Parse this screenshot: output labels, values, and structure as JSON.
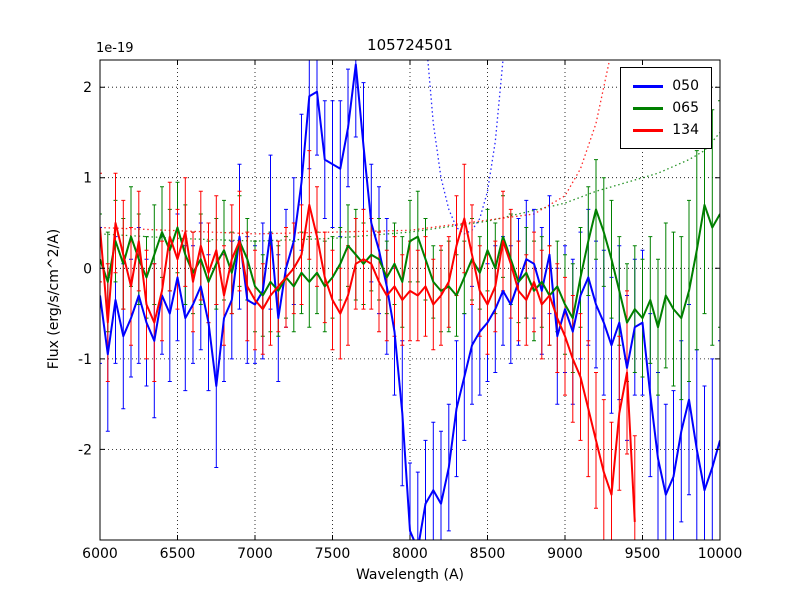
{
  "chart_data": {
    "type": "line",
    "title": "105724501",
    "xlabel": "Wavelength (A)",
    "ylabel": "Flux (erg/s/cm^2/A)",
    "offset_text": "1e-19",
    "grid": true,
    "legend_position": "upper right",
    "xlim": [
      6000,
      10000
    ],
    "ylim": [
      -3.0,
      2.3
    ],
    "xticks": [
      6000,
      6500,
      7000,
      7500,
      8000,
      8500,
      9000,
      9500,
      10000
    ],
    "yticks": [
      -2,
      -1,
      0,
      1,
      2
    ],
    "x": [
      6000,
      6050,
      6100,
      6150,
      6200,
      6250,
      6300,
      6350,
      6400,
      6450,
      6500,
      6550,
      6600,
      6650,
      6700,
      6750,
      6800,
      6850,
      6900,
      6950,
      7000,
      7050,
      7100,
      7150,
      7200,
      7250,
      7300,
      7350,
      7400,
      7450,
      7500,
      7550,
      7600,
      7650,
      7700,
      7750,
      7800,
      7850,
      7900,
      7950,
      8000,
      8050,
      8100,
      8150,
      8200,
      8250,
      8300,
      8350,
      8400,
      8450,
      8500,
      8550,
      8600,
      8650,
      8700,
      8750,
      8800,
      8850,
      8900,
      8950,
      9000,
      9050,
      9100,
      9150,
      9200,
      9250,
      9300,
      9350,
      9400,
      9450,
      9500,
      9550,
      9600,
      9650,
      9700,
      9750,
      9800,
      9850,
      9900,
      9950,
      10000
    ],
    "series": [
      {
        "name": "050",
        "color": "#0000ff",
        "values": [
          -0.3,
          -0.95,
          -0.35,
          -0.75,
          -0.55,
          -0.3,
          -0.6,
          -0.8,
          -0.3,
          -0.5,
          -0.1,
          -0.55,
          -0.4,
          -0.2,
          -0.6,
          -1.3,
          -0.55,
          -0.35,
          0.35,
          -0.35,
          -0.4,
          -0.25,
          0.4,
          -0.55,
          0.0,
          0.3,
          0.95,
          1.9,
          1.95,
          1.2,
          1.15,
          1.1,
          1.55,
          2.25,
          1.35,
          0.5,
          0.2,
          -0.2,
          -0.7,
          -1.6,
          -2.9,
          -3.1,
          -2.6,
          -2.45,
          -2.6,
          -2.2,
          -1.55,
          -1.2,
          -0.85,
          -0.7,
          -0.6,
          -0.45,
          -0.25,
          -0.4,
          -0.15,
          0.1,
          0.05,
          -0.25,
          0.15,
          -0.75,
          -0.45,
          -0.7,
          -0.3,
          -0.1,
          -0.4,
          -0.6,
          -0.85,
          -0.6,
          -1.1,
          -0.65,
          -0.6,
          -1.4,
          -2.1,
          -2.5,
          -2.3,
          -1.8,
          -1.45,
          -2.0,
          -2.45,
          -2.2,
          -1.9
        ],
        "yerr": [
          0.75,
          0.85,
          0.7,
          0.8,
          0.65,
          0.75,
          0.7,
          0.85,
          0.65,
          0.75,
          0.7,
          0.8,
          0.65,
          0.7,
          0.75,
          0.9,
          0.7,
          0.65,
          0.8,
          0.7,
          0.65,
          0.75,
          0.85,
          0.7,
          0.65,
          0.7,
          0.75,
          0.8,
          0.7,
          0.65,
          0.7,
          0.75,
          0.65,
          0.8,
          0.7,
          0.65,
          0.7,
          0.75,
          0.7,
          0.8,
          0.75,
          0.85,
          0.7,
          0.75,
          0.8,
          0.7,
          0.75,
          0.7,
          0.65,
          0.7,
          0.65,
          0.7,
          0.6,
          0.65,
          0.7,
          0.65,
          0.6,
          0.7,
          0.65,
          0.75,
          0.7,
          0.8,
          0.7,
          0.75,
          0.7,
          0.8,
          0.75,
          0.85,
          0.8,
          0.75,
          0.8,
          0.9,
          0.95,
          1.0,
          0.95,
          1.0,
          1.05,
          1.1,
          1.15,
          1.2,
          1.1
        ]
      },
      {
        "name": "065",
        "color": "#008000",
        "values": [
          0.1,
          -0.15,
          0.3,
          0.05,
          0.35,
          0.1,
          -0.1,
          0.15,
          0.4,
          0.2,
          0.45,
          0.15,
          -0.05,
          0.1,
          -0.15,
          0.05,
          0.2,
          -0.05,
          0.3,
          0.1,
          -0.2,
          -0.3,
          -0.15,
          -0.25,
          -0.1,
          -0.2,
          -0.05,
          -0.15,
          -0.05,
          -0.2,
          -0.1,
          0.05,
          0.25,
          0.15,
          0.05,
          0.15,
          0.1,
          -0.1,
          0.05,
          -0.15,
          0.3,
          0.35,
          0.1,
          -0.15,
          -0.25,
          -0.2,
          -0.3,
          -0.1,
          0.1,
          -0.05,
          0.2,
          0.0,
          0.35,
          0.1,
          -0.15,
          -0.05,
          -0.25,
          -0.15,
          -0.3,
          -0.2,
          -0.4,
          -0.55,
          -0.1,
          0.3,
          0.65,
          0.4,
          0.1,
          -0.25,
          -0.6,
          -0.45,
          -0.55,
          -0.35,
          -0.65,
          -0.3,
          -0.45,
          -0.55,
          -0.25,
          0.2,
          0.7,
          0.45,
          0.6
        ],
        "yerr": [
          0.5,
          0.55,
          0.45,
          0.5,
          0.55,
          0.5,
          0.45,
          0.55,
          0.5,
          0.45,
          0.5,
          0.55,
          0.45,
          0.5,
          0.45,
          0.5,
          0.55,
          0.45,
          0.5,
          0.45,
          0.5,
          0.45,
          0.55,
          0.5,
          0.45,
          0.5,
          0.45,
          0.5,
          0.45,
          0.5,
          0.45,
          0.4,
          0.45,
          0.5,
          0.45,
          0.4,
          0.45,
          0.4,
          0.45,
          0.5,
          0.45,
          0.5,
          0.45,
          0.4,
          0.45,
          0.5,
          0.45,
          0.4,
          0.45,
          0.4,
          0.45,
          0.5,
          0.45,
          0.5,
          0.45,
          0.5,
          0.55,
          0.5,
          0.55,
          0.5,
          0.55,
          0.6,
          0.55,
          0.6,
          0.55,
          0.6,
          0.65,
          0.6,
          0.65,
          0.7,
          0.65,
          0.7,
          0.75,
          0.8,
          0.85,
          0.9,
          1.0,
          1.1,
          1.2,
          1.3,
          1.25
        ]
      },
      {
        "name": "134",
        "color": "#ff0000",
        "values": [
          0.45,
          -0.6,
          0.5,
          0.15,
          -0.2,
          0.3,
          -0.4,
          -0.6,
          -0.25,
          0.35,
          0.1,
          0.4,
          -0.15,
          0.25,
          -0.05,
          0.2,
          -0.3,
          0.1,
          0.3,
          -0.2,
          -0.35,
          -0.45,
          -0.3,
          -0.2,
          -0.1,
          0.0,
          0.15,
          0.7,
          0.35,
          -0.1,
          -0.35,
          -0.5,
          -0.3,
          0.05,
          0.1,
          0.05,
          -0.15,
          -0.3,
          -0.2,
          -0.35,
          -0.25,
          -0.3,
          -0.2,
          -0.4,
          -0.3,
          -0.15,
          0.25,
          0.55,
          0.15,
          -0.25,
          -0.4,
          -0.2,
          0.3,
          0.05,
          -0.25,
          -0.35,
          -0.15,
          -0.4,
          -0.3,
          -0.55,
          -0.75,
          -1.0,
          -1.2,
          -1.55,
          -1.9,
          -2.25,
          -2.5,
          -1.6,
          -1.15,
          -2.8
        ],
        "yerr": [
          0.6,
          0.65,
          0.55,
          0.6,
          0.65,
          0.55,
          0.6,
          0.65,
          0.55,
          0.6,
          0.55,
          0.6,
          0.55,
          0.6,
          0.55,
          0.6,
          0.55,
          0.6,
          0.55,
          0.6,
          0.55,
          0.5,
          0.55,
          0.5,
          0.55,
          0.5,
          0.55,
          0.6,
          0.55,
          0.5,
          0.55,
          0.5,
          0.55,
          0.5,
          0.55,
          0.5,
          0.55,
          0.5,
          0.55,
          0.5,
          0.55,
          0.5,
          0.55,
          0.5,
          0.55,
          0.5,
          0.55,
          0.6,
          0.55,
          0.5,
          0.55,
          0.5,
          0.55,
          0.6,
          0.55,
          0.5,
          0.55,
          0.6,
          0.55,
          0.6,
          0.65,
          0.7,
          0.7,
          0.75,
          0.75,
          0.8,
          0.8,
          0.85,
          0.9,
          0.95
        ]
      }
    ],
    "noise_curves": [
      {
        "name": "050-noise",
        "color": "#0000ff",
        "style": "dotted",
        "x": [
          8000,
          8050,
          8100,
          8150,
          8200,
          8250,
          8300,
          8350,
          8400,
          8450,
          8500,
          8550,
          8600,
          8650,
          8700
        ],
        "values": [
          6.0,
          4.0,
          2.6,
          1.6,
          1.0,
          0.65,
          0.45,
          0.38,
          0.42,
          0.55,
          0.85,
          1.4,
          2.3,
          3.8,
          6.0
        ]
      },
      {
        "name": "065-noise",
        "color": "#008000",
        "style": "dotted",
        "x": [
          6000,
          6500,
          7000,
          7500,
          8000,
          8500,
          9000,
          9200,
          9400,
          9600,
          9800,
          9900,
          10000
        ],
        "values": [
          0.38,
          0.33,
          0.3,
          0.33,
          0.4,
          0.52,
          0.72,
          0.85,
          0.95,
          1.05,
          1.2,
          1.3,
          1.5
        ]
      },
      {
        "name": "134-noise",
        "color": "#ff0000",
        "style": "dotted",
        "x": [
          6000,
          7000,
          8000,
          8800,
          9000,
          9100,
          9200,
          9300,
          9400,
          9450
        ],
        "values": [
          0.45,
          0.38,
          0.42,
          0.6,
          0.8,
          1.1,
          1.6,
          2.4,
          3.5,
          4.5
        ]
      }
    ]
  }
}
